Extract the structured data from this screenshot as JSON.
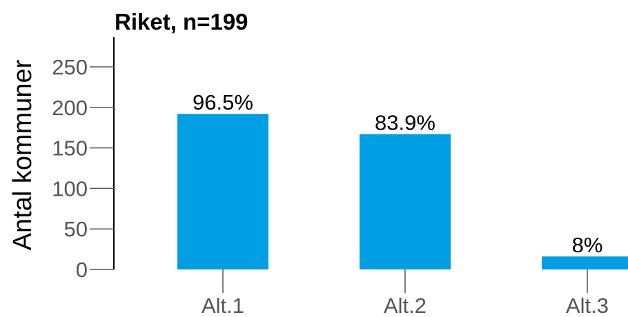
{
  "chart_data": {
    "type": "bar",
    "title": "Riket, n=199",
    "xlabel": "",
    "ylabel": "Antal kommuner",
    "categories": [
      "Alt.1",
      "Alt.2",
      "Alt.3"
    ],
    "values": [
      192,
      167,
      16
    ],
    "data_labels": [
      "96.5%",
      "83.9%",
      "8%"
    ],
    "ylim": [
      0,
      290
    ],
    "yticks": [
      0,
      50,
      100,
      150,
      200,
      250
    ],
    "grid": false,
    "legend": "none",
    "bar_color": "#009fe3"
  }
}
